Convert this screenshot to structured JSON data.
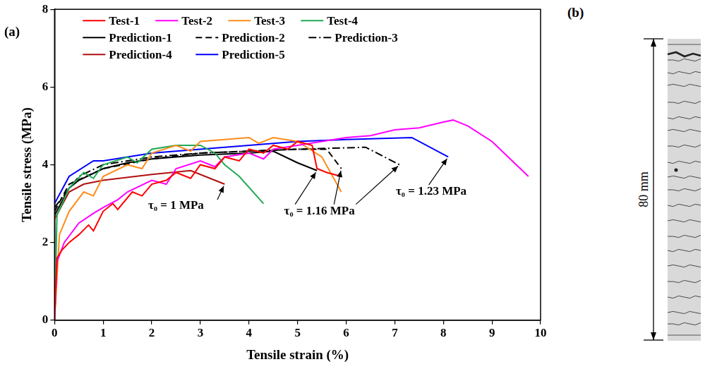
{
  "chart_data": {
    "type": "line",
    "panel": "(a)",
    "x_label": "Tensile strain (%)",
    "y_label": "Tensile stress (MPa)",
    "xlim": [
      0,
      10
    ],
    "xticks": [
      0,
      1,
      2,
      3,
      4,
      5,
      6,
      7,
      8,
      9,
      10
    ],
    "ylim": [
      0,
      8
    ],
    "yticks": [
      0,
      2,
      4,
      6,
      8
    ],
    "grid": false,
    "legend": "top",
    "annotations": [
      "τ₀ = 1 MPa",
      "τ₀ = 1.16 MPa",
      "τ₀ = 1.23 MPa"
    ],
    "series": [
      {
        "name": "Test-1",
        "color": "#ff0000",
        "line_style": "solid",
        "x": [
          0,
          0.05,
          0.15,
          0.3,
          0.5,
          0.7,
          0.8,
          1.0,
          1.2,
          1.3,
          1.6,
          1.8,
          2.0,
          2.3,
          2.5,
          2.8,
          3.0,
          3.3,
          3.5,
          3.8,
          4.0,
          4.3,
          4.5,
          4.8,
          5.0,
          5.3,
          5.4,
          5.6,
          5.9
        ],
        "values": [
          0,
          1.6,
          1.8,
          2.0,
          2.2,
          2.45,
          2.3,
          2.8,
          3.0,
          2.85,
          3.3,
          3.2,
          3.5,
          3.6,
          3.8,
          3.65,
          4.0,
          3.9,
          4.2,
          4.1,
          4.4,
          4.3,
          4.5,
          4.4,
          4.6,
          4.5,
          3.9,
          3.8,
          3.7
        ]
      },
      {
        "name": "Test-2",
        "color": "#ff00ff",
        "line_style": "solid",
        "x": [
          0,
          0.05,
          0.2,
          0.5,
          0.8,
          1.0,
          1.3,
          1.5,
          2.0,
          2.3,
          2.5,
          3.0,
          3.3,
          3.5,
          4.0,
          4.3,
          4.5,
          5.0,
          5.5,
          6.0,
          6.5,
          7.0,
          7.5,
          8.0,
          8.2,
          8.5,
          9.0,
          9.5,
          9.75
        ],
        "values": [
          0,
          1.5,
          2.0,
          2.5,
          2.75,
          2.9,
          3.1,
          3.3,
          3.6,
          3.5,
          3.9,
          4.1,
          3.95,
          4.2,
          4.3,
          4.15,
          4.4,
          4.5,
          4.6,
          4.7,
          4.75,
          4.9,
          4.95,
          5.1,
          5.15,
          5.0,
          4.6,
          4.0,
          3.7
        ]
      },
      {
        "name": "Test-3",
        "color": "#ff8c1a",
        "line_style": "solid",
        "x": [
          0,
          0.1,
          0.3,
          0.6,
          0.8,
          1.0,
          1.5,
          1.8,
          2.0,
          2.5,
          2.8,
          3.0,
          3.5,
          4.0,
          4.2,
          4.5,
          5.0,
          5.5,
          5.9
        ],
        "values": [
          0,
          2.2,
          2.8,
          3.3,
          3.2,
          3.7,
          4.0,
          3.9,
          4.3,
          4.5,
          4.35,
          4.6,
          4.65,
          4.7,
          4.55,
          4.7,
          4.6,
          4.2,
          3.3
        ]
      },
      {
        "name": "Test-4",
        "color": "#22aa55",
        "line_style": "solid",
        "x": [
          0,
          0.05,
          0.3,
          0.6,
          0.8,
          1.0,
          1.5,
          1.7,
          2.0,
          2.5,
          3.0,
          3.3,
          3.5,
          3.8,
          4.3
        ],
        "values": [
          0,
          2.7,
          3.4,
          3.8,
          3.65,
          4.0,
          4.2,
          4.05,
          4.4,
          4.5,
          4.5,
          4.3,
          4.0,
          3.7,
          3.0
        ]
      },
      {
        "name": "Prediction-1",
        "color": "#000000",
        "line_style": "solid",
        "x": [
          0,
          0.3,
          0.5,
          1,
          1.5,
          2,
          3,
          4,
          4.5,
          5,
          5.4
        ],
        "values": [
          2.7,
          3.4,
          3.6,
          3.9,
          4.05,
          4.15,
          4.25,
          4.3,
          4.35,
          4.05,
          3.85
        ]
      },
      {
        "name": "Prediction-2",
        "color": "#000000",
        "line_style": "dashed",
        "x": [
          0,
          0.3,
          1,
          2,
          3,
          4,
          5,
          5.6,
          5.9
        ],
        "values": [
          2.8,
          3.5,
          3.9,
          4.15,
          4.3,
          4.35,
          4.4,
          4.4,
          3.9
        ]
      },
      {
        "name": "Prediction-3",
        "color": "#000000",
        "line_style": "dashdot",
        "x": [
          0,
          0.5,
          1,
          2,
          3,
          4,
          5,
          6.4,
          7.1
        ],
        "values": [
          2.9,
          3.7,
          4.0,
          4.2,
          4.3,
          4.35,
          4.4,
          4.45,
          4.0
        ]
      },
      {
        "name": "Prediction-4",
        "color": "#b01010",
        "line_style": "solid",
        "x": [
          0,
          0.3,
          0.6,
          1,
          2,
          2.8,
          3.5
        ],
        "values": [
          2.6,
          3.3,
          3.5,
          3.6,
          3.75,
          3.85,
          3.5
        ]
      },
      {
        "name": "Prediction-5",
        "color": "#0000ff",
        "line_style": "solid",
        "x": [
          0,
          0.3,
          0.8,
          1,
          2,
          3,
          4,
          5,
          6,
          7.35,
          8.1
        ],
        "values": [
          3.0,
          3.7,
          4.1,
          4.1,
          4.3,
          4.4,
          4.5,
          4.6,
          4.65,
          4.7,
          4.2
        ]
      }
    ]
  },
  "image_panel": {
    "panel": "(b)",
    "dimension_label": "80 mm"
  }
}
